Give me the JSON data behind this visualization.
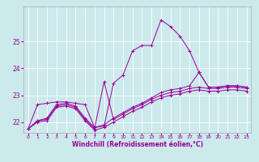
{
  "xlabel": "Windchill (Refroidissement éolien,°C)",
  "ylabel": "",
  "bg_color": "#cce9ec",
  "line_color": "#990099",
  "xlim": [
    -0.5,
    23.5
  ],
  "ylim": [
    21.6,
    26.3
  ],
  "yticks": [
    22,
    23,
    24,
    25
  ],
  "xticks": [
    0,
    1,
    2,
    3,
    4,
    5,
    6,
    7,
    8,
    9,
    10,
    11,
    12,
    13,
    14,
    15,
    16,
    17,
    18,
    19,
    20,
    21,
    22,
    23
  ],
  "series": [
    {
      "x": [
        0,
        1,
        2,
        3,
        4,
        5,
        6,
        7,
        8,
        9,
        10,
        11,
        12,
        13,
        14,
        15,
        16,
        17,
        18,
        19,
        20,
        21,
        22,
        23
      ],
      "y": [
        21.75,
        22.65,
        22.7,
        22.75,
        22.75,
        22.7,
        22.65,
        21.8,
        21.85,
        23.45,
        23.75,
        24.65,
        24.85,
        24.85,
        25.8,
        25.55,
        25.2,
        24.65,
        23.85,
        23.3,
        23.3,
        23.35,
        23.35,
        23.3
      ]
    },
    {
      "x": [
        0,
        1,
        2,
        3,
        4,
        5,
        6,
        7,
        8,
        9,
        10,
        11,
        12,
        13,
        14,
        15,
        16,
        17,
        18,
        19,
        20,
        21,
        22,
        23
      ],
      "y": [
        21.75,
        22.05,
        22.15,
        22.65,
        22.7,
        22.6,
        22.15,
        21.8,
        21.9,
        22.15,
        22.35,
        22.55,
        22.7,
        22.9,
        23.1,
        23.2,
        23.25,
        23.35,
        23.85,
        23.3,
        23.3,
        23.35,
        23.35,
        23.3
      ]
    },
    {
      "x": [
        0,
        1,
        2,
        3,
        4,
        5,
        6,
        7,
        8,
        9,
        10,
        11,
        12,
        13,
        14,
        15,
        16,
        17,
        18,
        19,
        20,
        21,
        22,
        23
      ],
      "y": [
        21.75,
        22.05,
        22.1,
        22.6,
        22.65,
        22.55,
        22.1,
        21.75,
        23.5,
        22.1,
        22.3,
        22.5,
        22.65,
        22.85,
        23.0,
        23.1,
        23.15,
        23.25,
        23.3,
        23.25,
        23.25,
        23.3,
        23.3,
        23.25
      ]
    },
    {
      "x": [
        0,
        1,
        2,
        3,
        4,
        5,
        6,
        7,
        8,
        9,
        10,
        11,
        12,
        13,
        14,
        15,
        16,
        17,
        18,
        19,
        20,
        21,
        22,
        23
      ],
      "y": [
        21.75,
        22.0,
        22.05,
        22.55,
        22.6,
        22.5,
        22.05,
        21.7,
        21.8,
        22.0,
        22.2,
        22.4,
        22.55,
        22.75,
        22.9,
        23.0,
        23.05,
        23.15,
        23.2,
        23.15,
        23.15,
        23.2,
        23.2,
        23.15
      ]
    }
  ]
}
